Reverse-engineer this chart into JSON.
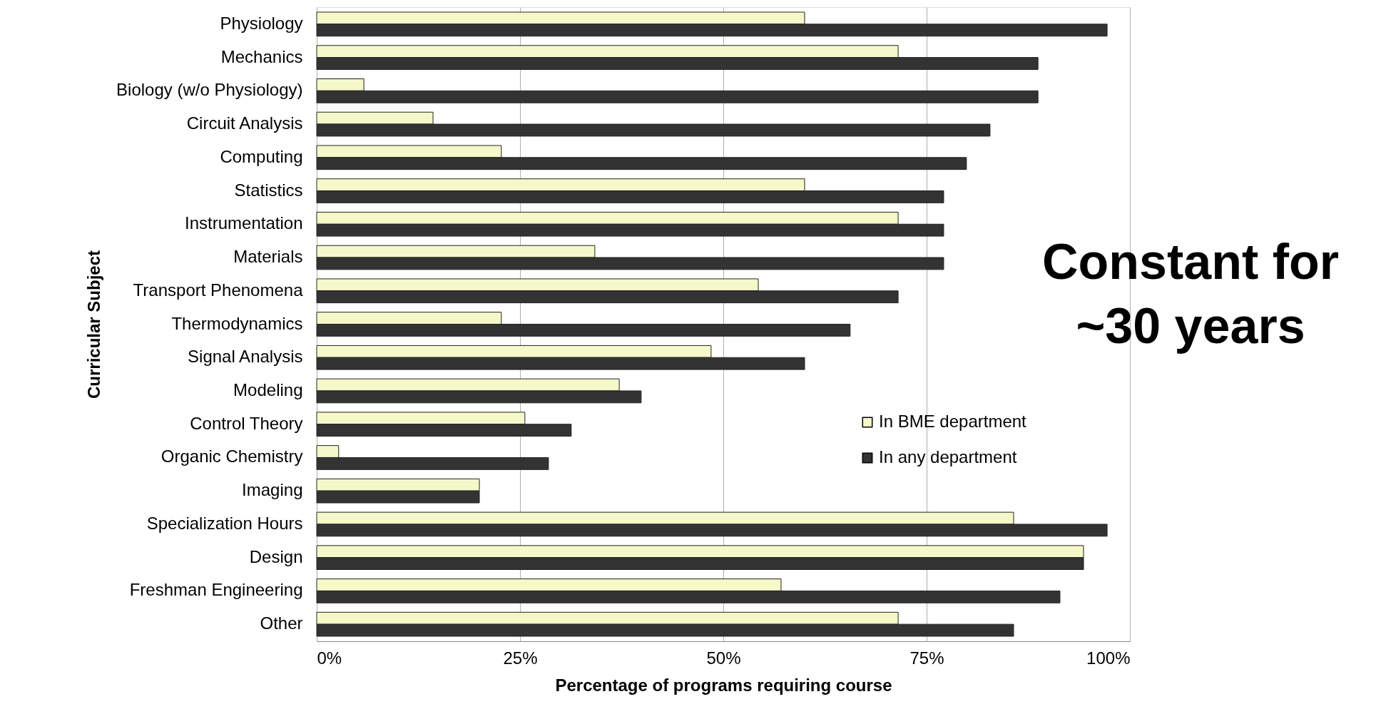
{
  "chart_data": {
    "type": "bar",
    "orientation": "horizontal",
    "xlabel": "Percentage of programs requiring course",
    "ylabel": "Curricular Subject",
    "categories": [
      "Physiology",
      "Mechanics",
      "Biology (w/o Physiology)",
      "Circuit Analysis",
      "Computing",
      "Statistics",
      "Instrumentation",
      "Materials",
      "Transport Phenomena",
      "Thermodynamics",
      "Signal Analysis",
      "Modeling",
      "Control Theory",
      "Organic Chemistry",
      "Imaging",
      "Specialization Hours",
      "Design",
      "Freshman Engineering",
      "Other"
    ],
    "series": [
      {
        "name": "In BME department",
        "color": "#f5f8c8",
        "values": [
          60,
          71.5,
          5.8,
          14.3,
          22.7,
          60,
          71.5,
          34.2,
          54.3,
          22.7,
          48.5,
          37.2,
          25.6,
          2.7,
          20,
          85.7,
          94.3,
          57.1,
          71.5
        ]
      },
      {
        "name": "In any department",
        "color": "#333333",
        "values": [
          97.2,
          88.7,
          88.7,
          82.8,
          79.9,
          77.1,
          77.1,
          77.1,
          71.5,
          65.6,
          60,
          39.9,
          31.3,
          28.5,
          20,
          97.2,
          94.3,
          91.4,
          85.7
        ]
      }
    ],
    "xlim": [
      0,
      100
    ],
    "xticks": [
      {
        "value": 0,
        "label": "0%"
      },
      {
        "value": 25,
        "label": "25%"
      },
      {
        "value": 50,
        "label": "50%"
      },
      {
        "value": 75,
        "label": "75%"
      },
      {
        "value": 100,
        "label": "100%"
      }
    ],
    "grid": "x",
    "legend": "bottom right",
    "annotations": [
      "Constant for ~30 years"
    ]
  }
}
